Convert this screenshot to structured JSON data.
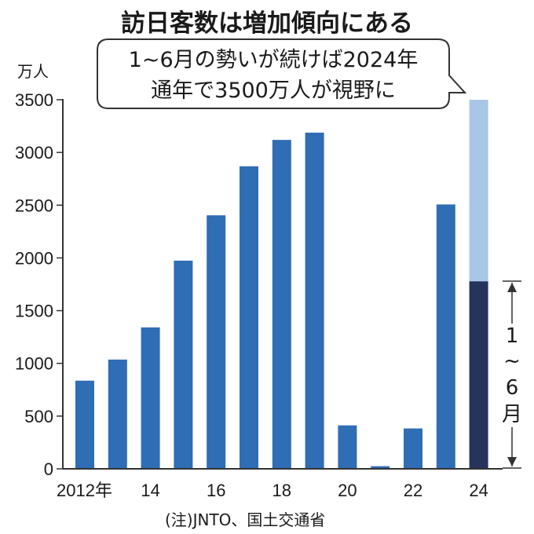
{
  "chart_data": {
    "type": "bar",
    "title": "訪日客数は増加傾向にある",
    "ylabel": "万人",
    "ylim": [
      0,
      3500
    ],
    "yticks": [
      0,
      500,
      1000,
      1500,
      2000,
      2500,
      3000,
      3500
    ],
    "years": [
      2012,
      2013,
      2014,
      2015,
      2016,
      2017,
      2018,
      2019,
      2020,
      2021,
      2022,
      2023,
      2024
    ],
    "x_tick_labels": [
      "2012年",
      "14",
      "16",
      "18",
      "20",
      "22",
      "24"
    ],
    "values": [
      836,
      1036,
      1341,
      1974,
      2404,
      2869,
      3119,
      3188,
      412,
      25,
      383,
      2507,
      1778
    ],
    "projection": {
      "year": 2024,
      "value": 3500
    },
    "annotation": {
      "line1": "1~6月の勢いが続けば2024年",
      "line2": "通年で3500万人が視野に"
    },
    "bracket_label": [
      "1",
      "~",
      "6",
      "月"
    ],
    "note": "(注)JNTO、国土交通省",
    "colors": {
      "bar": "#2f6db5",
      "half_year": "#26345c",
      "projection": "#a9c6e6",
      "axis": "#333333"
    }
  }
}
